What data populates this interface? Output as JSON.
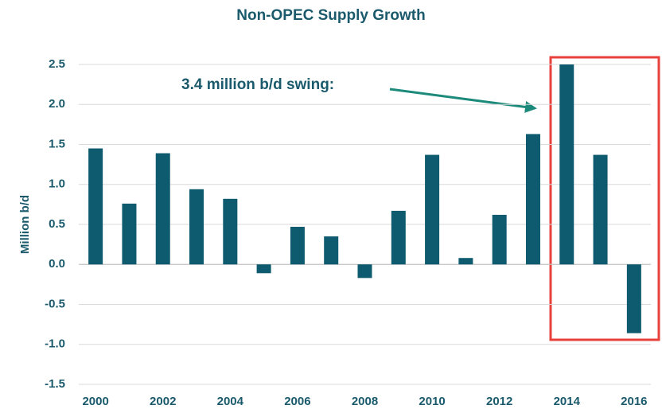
{
  "chart_data": {
    "type": "bar",
    "title": "Non-OPEC Supply Growth",
    "y_label": "Million b/d",
    "annotation": "3.4 million b/d swing:",
    "categories": [
      "2000",
      null,
      "2002",
      null,
      "2004",
      null,
      "2006",
      null,
      "2008",
      null,
      "2010",
      null,
      "2012",
      null,
      "2014",
      null,
      "2016"
    ],
    "values": [
      1.45,
      0.76,
      1.39,
      0.94,
      0.82,
      -0.11,
      0.47,
      0.35,
      -0.17,
      0.67,
      1.37,
      0.08,
      0.62,
      1.63,
      2.5,
      1.37,
      -0.86
    ],
    "color": "#0e5a6e",
    "ylim": [
      -1.5,
      2.5
    ],
    "yticks": [
      -1.5,
      {
        "value": -1,
        "label": "-1.0"
      },
      -0.5,
      {
        "value": 0,
        "label": "0.0"
      },
      0.5,
      {
        "value": 1,
        "label": "1.0"
      },
      1.5,
      {
        "value": 2,
        "label": "2.0"
      },
      2.5
    ],
    "grid": true
  }
}
